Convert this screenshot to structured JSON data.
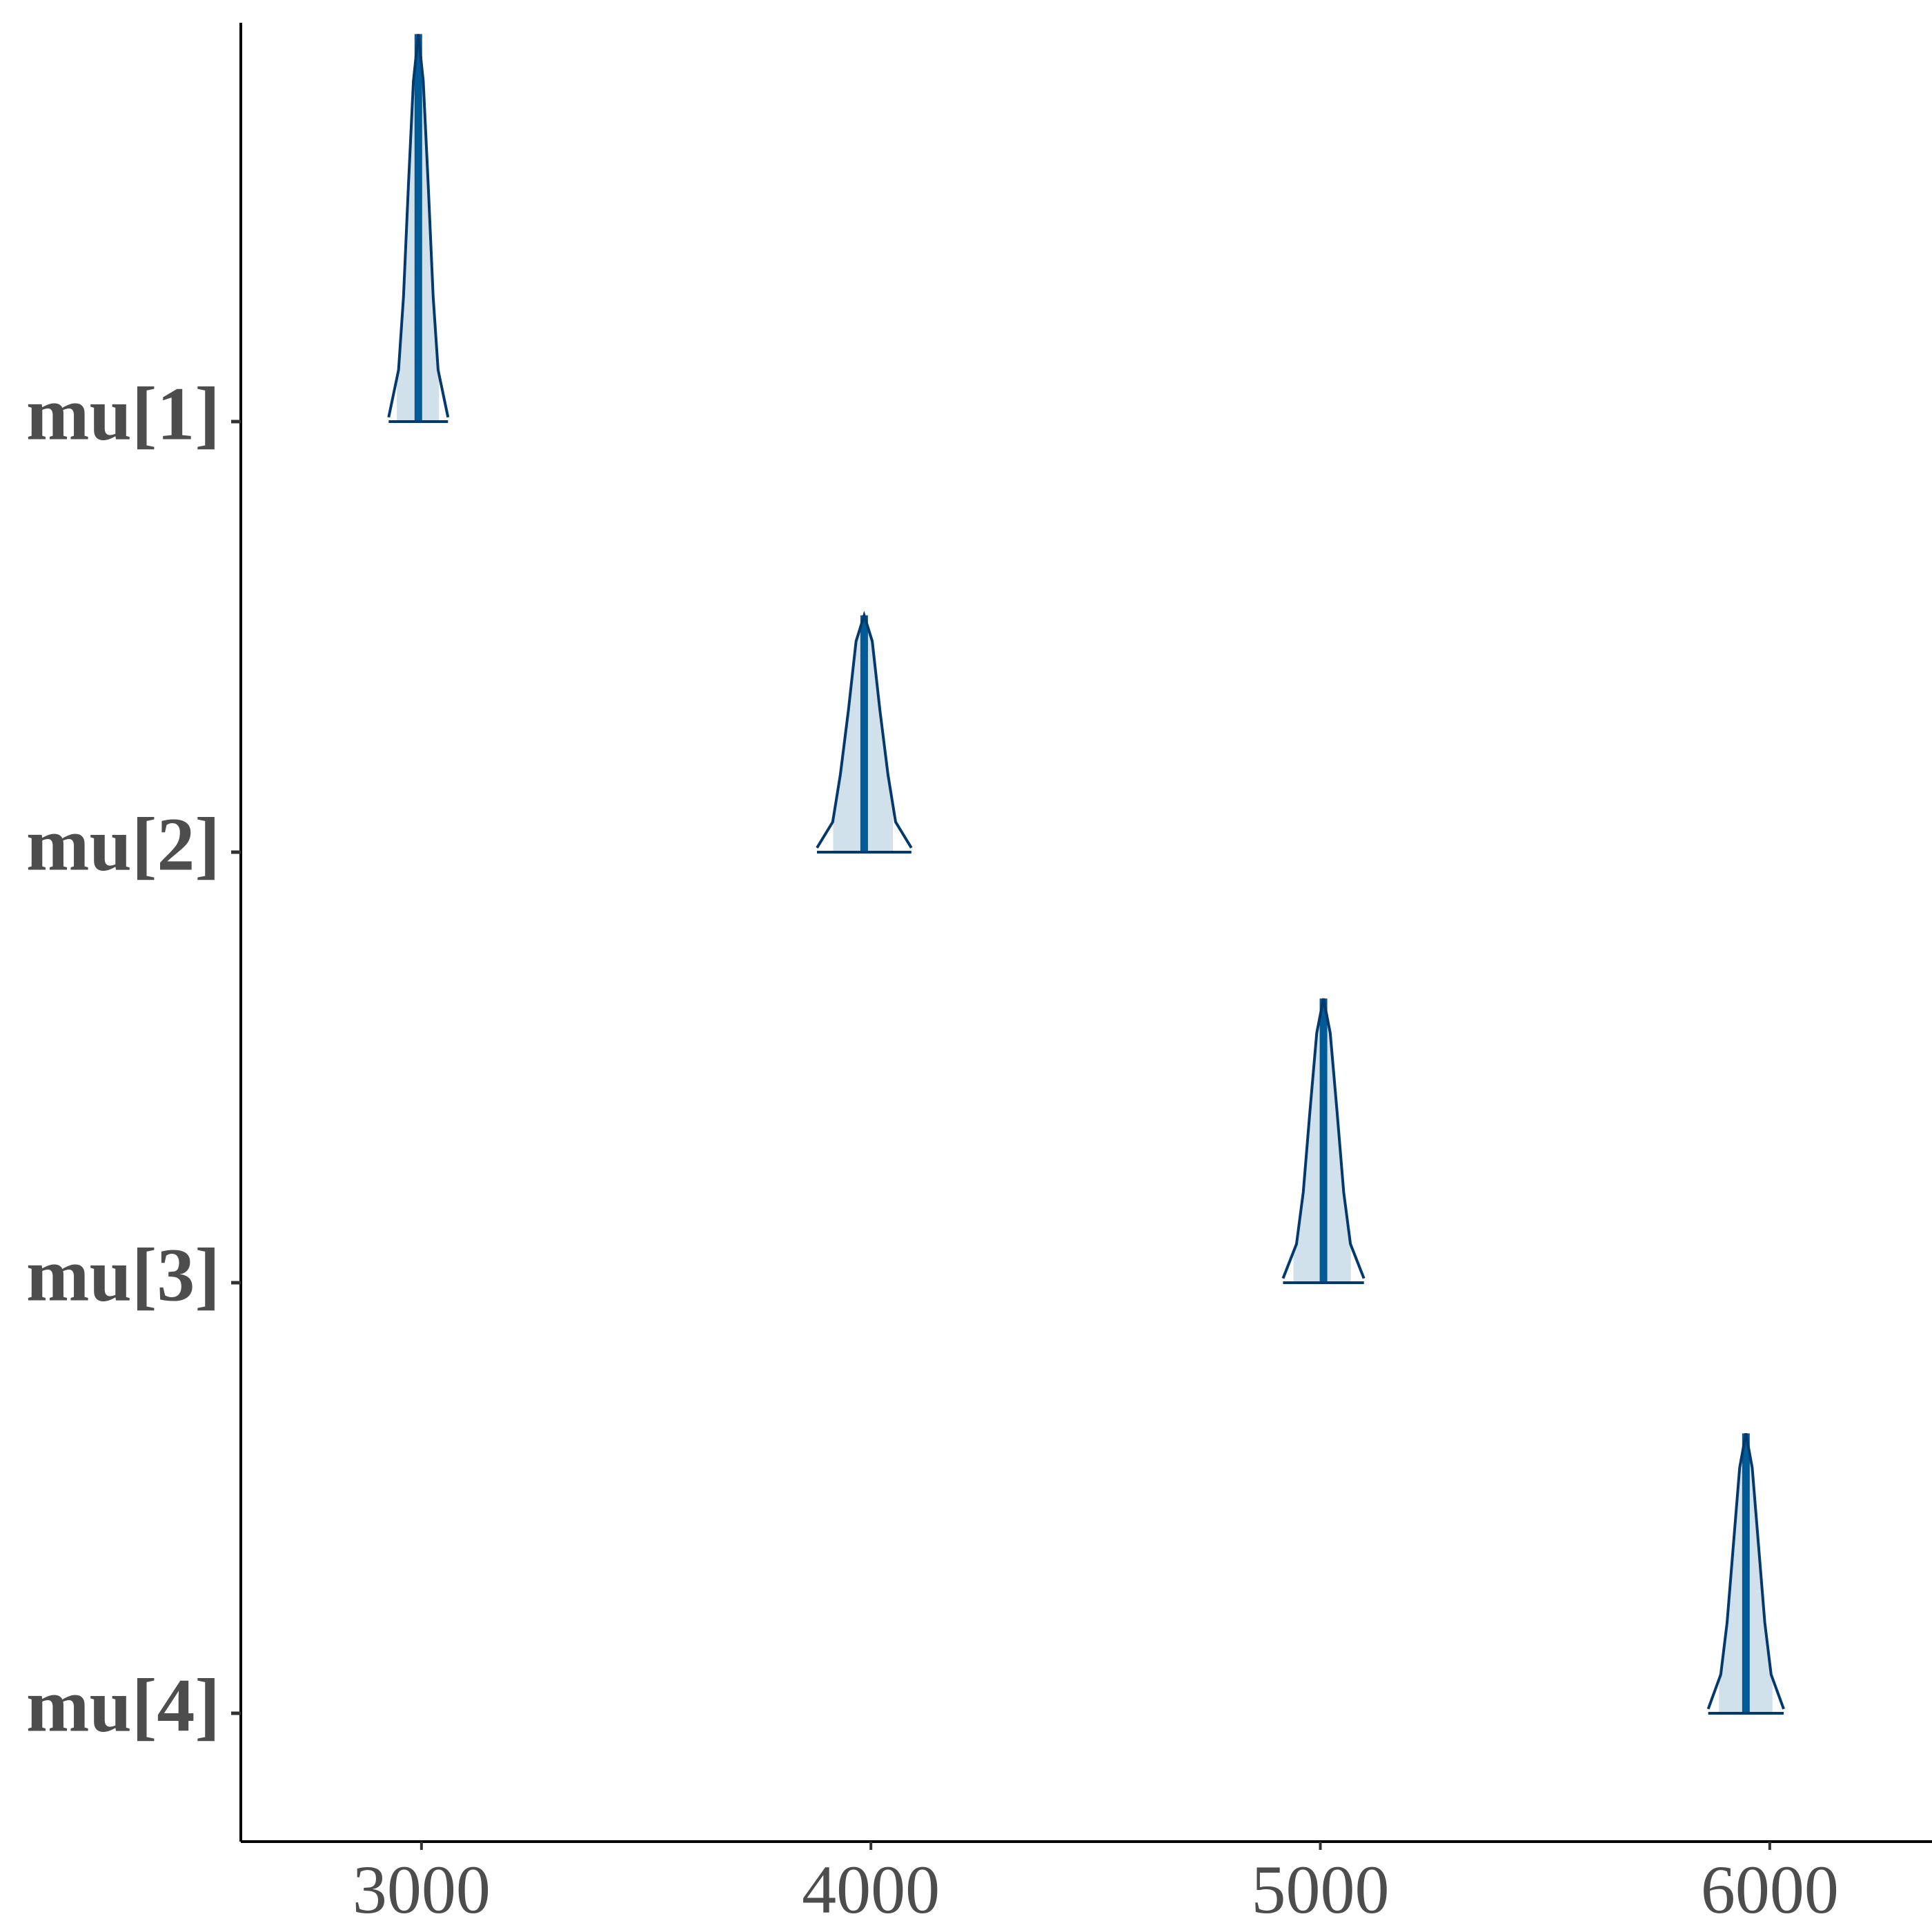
{
  "chart_data": {
    "type": "ridgeline",
    "xlim": [
      2598,
      6361
    ],
    "xticks": [
      3000,
      4000,
      5000,
      6000
    ],
    "colors": {
      "outline": "#03396c",
      "fill": "#d1e1ec",
      "median": "#005b96"
    },
    "series": [
      {
        "name": "mu[1]",
        "x": [
          2927,
          2949,
          2960,
          2971,
          2982,
          2993,
          3004,
          3015,
          3026,
          3037,
          3059
        ],
        "density": [
          0.01,
          0.12,
          0.29,
          0.55,
          0.79,
          0.9,
          0.79,
          0.55,
          0.29,
          0.12,
          0.01
        ],
        "interval": [
          2945,
          3039
        ],
        "median": 2993
      },
      {
        "name": "mu[2]",
        "x": [
          3880,
          3915,
          3932,
          3950,
          3967,
          3985,
          4003,
          4020,
          4038,
          4055,
          4090
        ],
        "density": [
          0.01,
          0.07,
          0.18,
          0.33,
          0.49,
          0.55,
          0.49,
          0.33,
          0.18,
          0.07,
          0.01
        ],
        "interval": [
          3916,
          4049
        ],
        "median": 3985
      },
      {
        "name": "mu[3]",
        "x": [
          4917,
          4947,
          4962,
          4977,
          4992,
          5007,
          5022,
          5037,
          5052,
          5067,
          5097
        ],
        "density": [
          0.01,
          0.09,
          0.21,
          0.4,
          0.58,
          0.66,
          0.58,
          0.4,
          0.21,
          0.09,
          0.01
        ],
        "interval": [
          4940,
          5068
        ],
        "median": 5007
      },
      {
        "name": "mu[4]",
        "x": [
          5863,
          5891,
          5905,
          5919,
          5933,
          5947,
          5961,
          5975,
          5989,
          6003,
          6031
        ],
        "density": [
          0.01,
          0.09,
          0.21,
          0.39,
          0.57,
          0.65,
          0.57,
          0.39,
          0.21,
          0.09,
          0.01
        ],
        "interval": [
          5887,
          6006
        ],
        "median": 5947
      }
    ]
  }
}
